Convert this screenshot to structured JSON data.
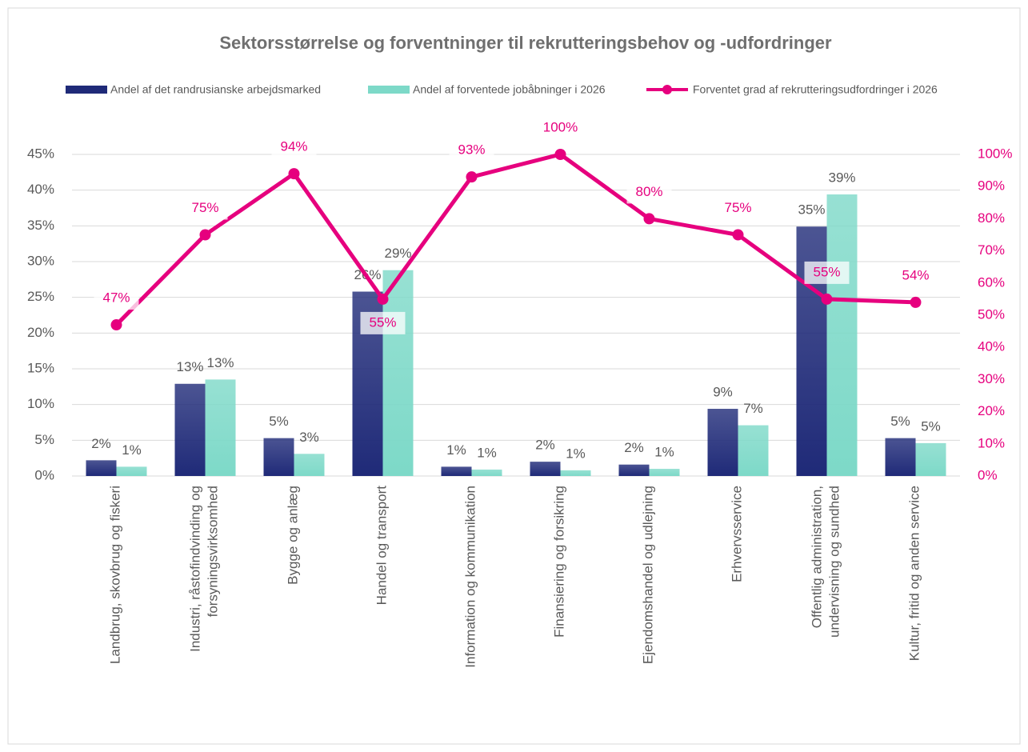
{
  "chart_data": {
    "type": "bar",
    "title": "Sektorsstørrelse og forventninger til rekrutteringsbehov og -udfordringer",
    "categories": [
      "Landbrug, skovbrug og fiskeri",
      "Industri, råstofindvinding og\nforsyningsvirksomhed",
      "Bygge og anlæg",
      "Handel og transport",
      "Information og kommunikation",
      "Finansiering og forsikring",
      "Ejendomshandel og udlejning",
      "Erhvervsservice",
      "Offentlig administration,\nundervisning og sundhed",
      "Kultur, fritid og anden service"
    ],
    "series": [
      {
        "name": "Andel af det randrusianske arbejdsmarked",
        "type": "bar",
        "color": "#1f2a78",
        "values": [
          2.2,
          12.9,
          5.3,
          25.8,
          1.3,
          2.0,
          1.6,
          9.4,
          34.9,
          5.3
        ],
        "value_labels": [
          "2%",
          "13%",
          "5%",
          "26%",
          "1%",
          "2%",
          "2%",
          "9%",
          "35%",
          "5%"
        ]
      },
      {
        "name": "Andel af forventede jobåbninger i 2026",
        "type": "bar",
        "color": "#7dd9c8",
        "values": [
          1.3,
          13.5,
          3.1,
          28.8,
          0.9,
          0.8,
          1.0,
          7.1,
          39.4,
          4.6
        ],
        "value_labels": [
          "1%",
          "13%",
          "3%",
          "29%",
          "1%",
          "1%",
          "1%",
          "7%",
          "39%",
          "5%"
        ]
      },
      {
        "name": "Forventet grad af rekrutteringsudfordringer i 2026",
        "type": "line",
        "axis": "y2",
        "color": "#e6007e",
        "values": [
          47,
          75,
          94,
          55,
          93,
          100,
          80,
          75,
          55,
          54
        ],
        "value_labels": [
          "47%",
          "75%",
          "94%",
          "55%",
          "93%",
          "100%",
          "80%",
          "75%",
          "55%",
          "54%"
        ]
      }
    ],
    "ylim": [
      0,
      45
    ],
    "yticks": [
      {
        "value": 0,
        "label": "0%"
      },
      {
        "value": 5,
        "label": "5%"
      },
      {
        "value": 10,
        "label": "10%"
      },
      {
        "value": 15,
        "label": "15%"
      },
      {
        "value": 20,
        "label": "20%"
      },
      {
        "value": 25,
        "label": "25%"
      },
      {
        "value": 30,
        "label": "30%"
      },
      {
        "value": 35,
        "label": "35%"
      },
      {
        "value": 40,
        "label": "40%"
      },
      {
        "value": 45,
        "label": "45%"
      }
    ],
    "y2lim": [
      0,
      100
    ],
    "y2ticks": [
      {
        "value": 0,
        "label": "0%"
      },
      {
        "value": 10,
        "label": "10%"
      },
      {
        "value": 20,
        "label": "20%"
      },
      {
        "value": 30,
        "label": "30%"
      },
      {
        "value": 40,
        "label": "40%"
      },
      {
        "value": 50,
        "label": "50%"
      },
      {
        "value": 60,
        "label": "60%"
      },
      {
        "value": 70,
        "label": "70%"
      },
      {
        "value": 80,
        "label": "80%"
      },
      {
        "value": 90,
        "label": "90%"
      },
      {
        "value": 100,
        "label": "100%"
      }
    ],
    "legend": "top"
  }
}
